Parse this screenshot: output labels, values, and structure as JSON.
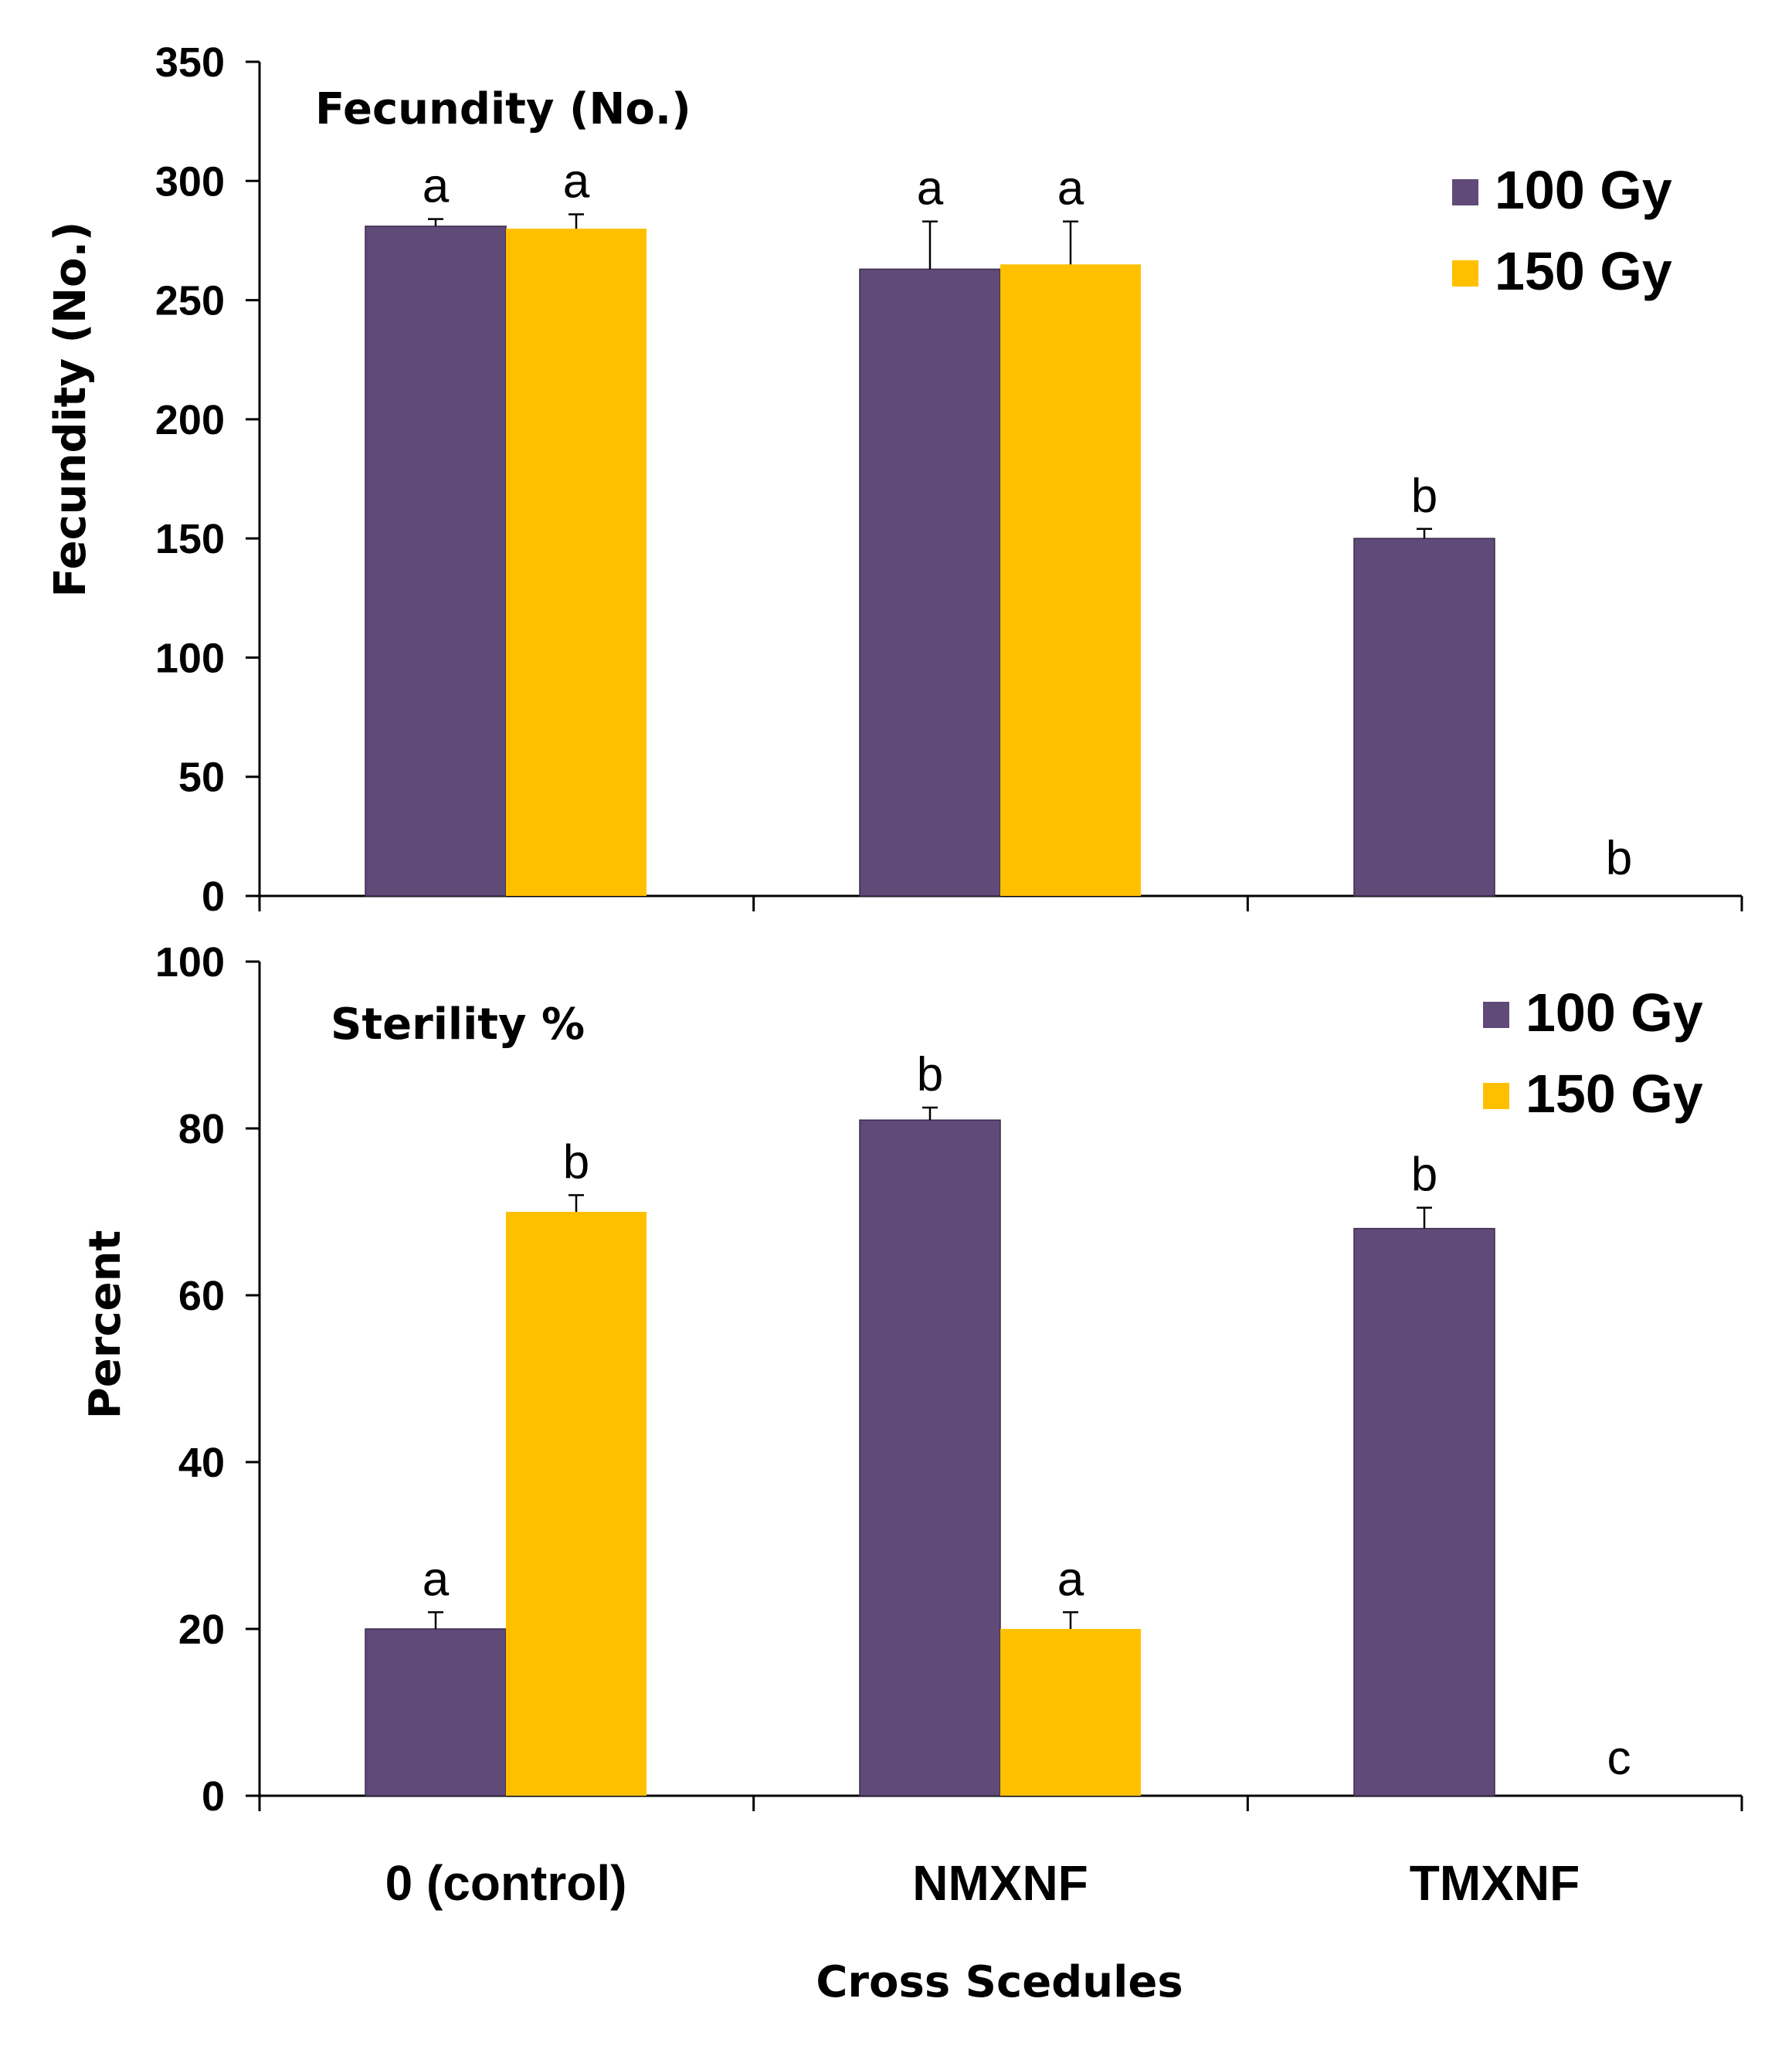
{
  "colors": {
    "series_100": "#5f4a78",
    "series_150": "#ffc000",
    "axis": "#000000"
  },
  "x_axis_title": "Cross Scedules",
  "chart_data": [
    {
      "type": "bar",
      "title": "Fecundity (No.)",
      "ylabel": "Fecundity (No.)",
      "xlabel": "Cross Scedules",
      "ylim": [
        0,
        350
      ],
      "yticks": [
        0,
        50,
        100,
        150,
        200,
        250,
        300,
        350
      ],
      "categories": [
        "0 (control)",
        "NMXNF",
        "TMXNF"
      ],
      "legend": "right",
      "series": [
        {
          "name": "100 Gy",
          "values": [
            281,
            263,
            150
          ],
          "errors": [
            3,
            20,
            4
          ],
          "sig": [
            "a",
            "a",
            "b"
          ]
        },
        {
          "name": "150 Gy",
          "values": [
            280,
            265,
            0
          ],
          "errors": [
            6,
            18,
            0
          ],
          "sig": [
            "a",
            "a",
            "b"
          ]
        }
      ]
    },
    {
      "type": "bar",
      "title": "Sterility %",
      "ylabel": "Percent",
      "xlabel": "Cross Scedules",
      "ylim": [
        0,
        100
      ],
      "yticks": [
        0,
        20,
        40,
        60,
        80,
        100
      ],
      "categories": [
        "0 (control)",
        "NMXNF",
        "TMXNF"
      ],
      "legend": "right",
      "series": [
        {
          "name": "100 Gy",
          "values": [
            20,
            81,
            68
          ],
          "errors": [
            2,
            1.5,
            2.5
          ],
          "sig": [
            "a",
            "b",
            "b"
          ]
        },
        {
          "name": "150 Gy",
          "values": [
            70,
            20,
            0
          ],
          "errors": [
            2,
            2,
            0
          ],
          "sig": [
            "b",
            "a",
            "c"
          ]
        }
      ]
    }
  ]
}
